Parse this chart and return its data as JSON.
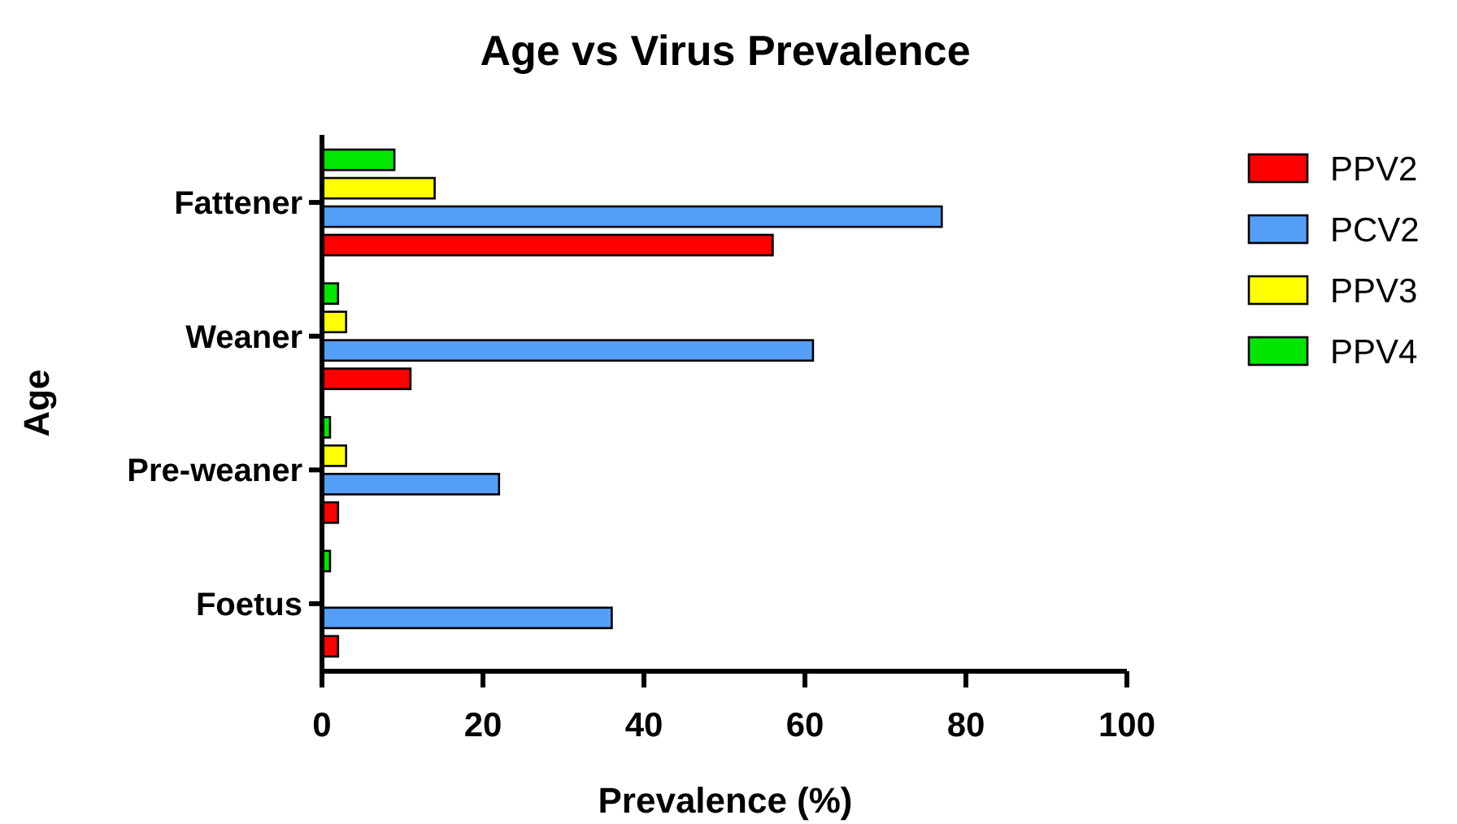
{
  "chart_data": {
    "type": "bar",
    "orientation": "horizontal",
    "title": "Age vs Virus Prevalence",
    "xlabel": "Prevalence (%)",
    "ylabel": "Age",
    "categories": [
      "Fattener",
      "Weaner",
      "Pre-weaner",
      "Foetus"
    ],
    "series": [
      {
        "name": "PPV2",
        "color": "#ff0000",
        "values": [
          56,
          11,
          2,
          2
        ]
      },
      {
        "name": "PCV2",
        "color": "#559ef7",
        "values": [
          77,
          61,
          22,
          36
        ]
      },
      {
        "name": "PPV3",
        "color": "#ffff00",
        "values": [
          14,
          3,
          3,
          0
        ]
      },
      {
        "name": "PPV4",
        "color": "#00e600",
        "values": [
          9,
          2,
          1,
          1
        ]
      }
    ],
    "xlim": [
      0,
      100
    ],
    "xticks": [
      0,
      20,
      40,
      60,
      80,
      100
    ],
    "grid": false,
    "legend": "right"
  }
}
